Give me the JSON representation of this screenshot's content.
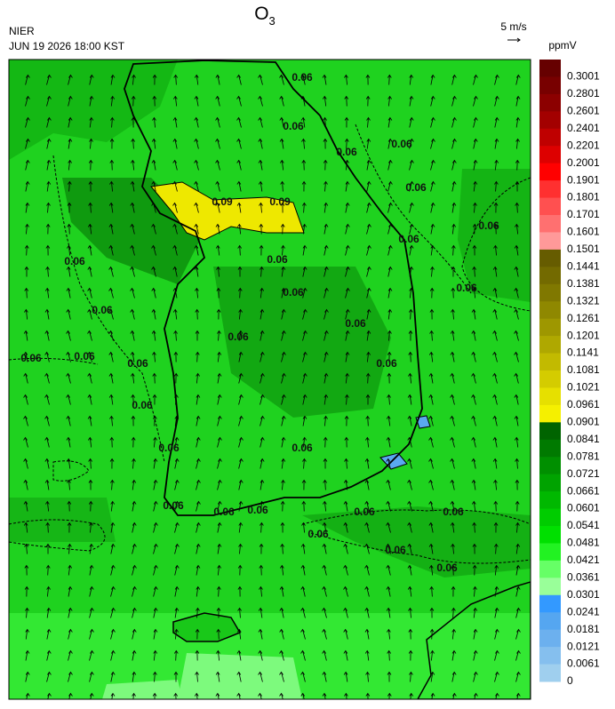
{
  "title": "O",
  "title_subscript": "3",
  "source": "NIER",
  "datetime": "JUN 19 2026 18:00 KST",
  "wind_reference": "5 m/s",
  "legend": {
    "title": "ppmV",
    "items": [
      {
        "label": "0.3001",
        "color": "#660000"
      },
      {
        "label": "0.2801",
        "color": "#780000"
      },
      {
        "label": "0.2601",
        "color": "#8c0000"
      },
      {
        "label": "0.2401",
        "color": "#a30000"
      },
      {
        "label": "0.2201",
        "color": "#bf0000"
      },
      {
        "label": "0.2001",
        "color": "#dd0000"
      },
      {
        "label": "0.1901",
        "color": "#ff0000"
      },
      {
        "label": "0.1801",
        "color": "#ff3030"
      },
      {
        "label": "0.1701",
        "color": "#ff5050"
      },
      {
        "label": "0.1601",
        "color": "#ff7070"
      },
      {
        "label": "0.1501",
        "color": "#ff9999"
      },
      {
        "label": "0.1441",
        "color": "#665c00"
      },
      {
        "label": "0.1381",
        "color": "#736a00"
      },
      {
        "label": "0.1321",
        "color": "#807800"
      },
      {
        "label": "0.1261",
        "color": "#8f8800"
      },
      {
        "label": "0.1201",
        "color": "#9e9700"
      },
      {
        "label": "0.1141",
        "color": "#afa800"
      },
      {
        "label": "0.1081",
        "color": "#c2ba00"
      },
      {
        "label": "0.1021",
        "color": "#d4cc00"
      },
      {
        "label": "0.0961",
        "color": "#e6e000"
      },
      {
        "label": "0.0901",
        "color": "#f5f000"
      },
      {
        "label": "0.0841",
        "color": "#006400"
      },
      {
        "label": "0.0781",
        "color": "#007a00"
      },
      {
        "label": "0.0721",
        "color": "#008f00"
      },
      {
        "label": "0.0661",
        "color": "#00a300"
      },
      {
        "label": "0.0601",
        "color": "#00b800"
      },
      {
        "label": "0.0541",
        "color": "#00cc00"
      },
      {
        "label": "0.0481",
        "color": "#00e000"
      },
      {
        "label": "0.0421",
        "color": "#22f222"
      },
      {
        "label": "0.0361",
        "color": "#66ff66"
      },
      {
        "label": "0.0301",
        "color": "#99ff99"
      },
      {
        "label": "0.0241",
        "color": "#3399ff"
      },
      {
        "label": "0.0181",
        "color": "#55a6f0"
      },
      {
        "label": "0.0121",
        "color": "#6cb0ee"
      },
      {
        "label": "0.0061",
        "color": "#85bfee"
      },
      {
        "label": "0",
        "color": "#9fcfee"
      }
    ]
  },
  "contour_labels": [
    "0.06",
    "0.06",
    "0.06",
    "0.06",
    "0.06",
    "0.06",
    "0.06",
    "0.06",
    "0.06",
    "0.06",
    "0.06",
    "0.06",
    "0.06",
    "0.06",
    "0.06",
    "0.06",
    "0.06",
    "0.06",
    "0.06",
    "0.06",
    "0.06",
    "0.06",
    "0.06",
    "0.06",
    "0.06",
    "0.06",
    "0.06",
    "0.06",
    "0.06",
    "0.09",
    "0.09"
  ]
}
